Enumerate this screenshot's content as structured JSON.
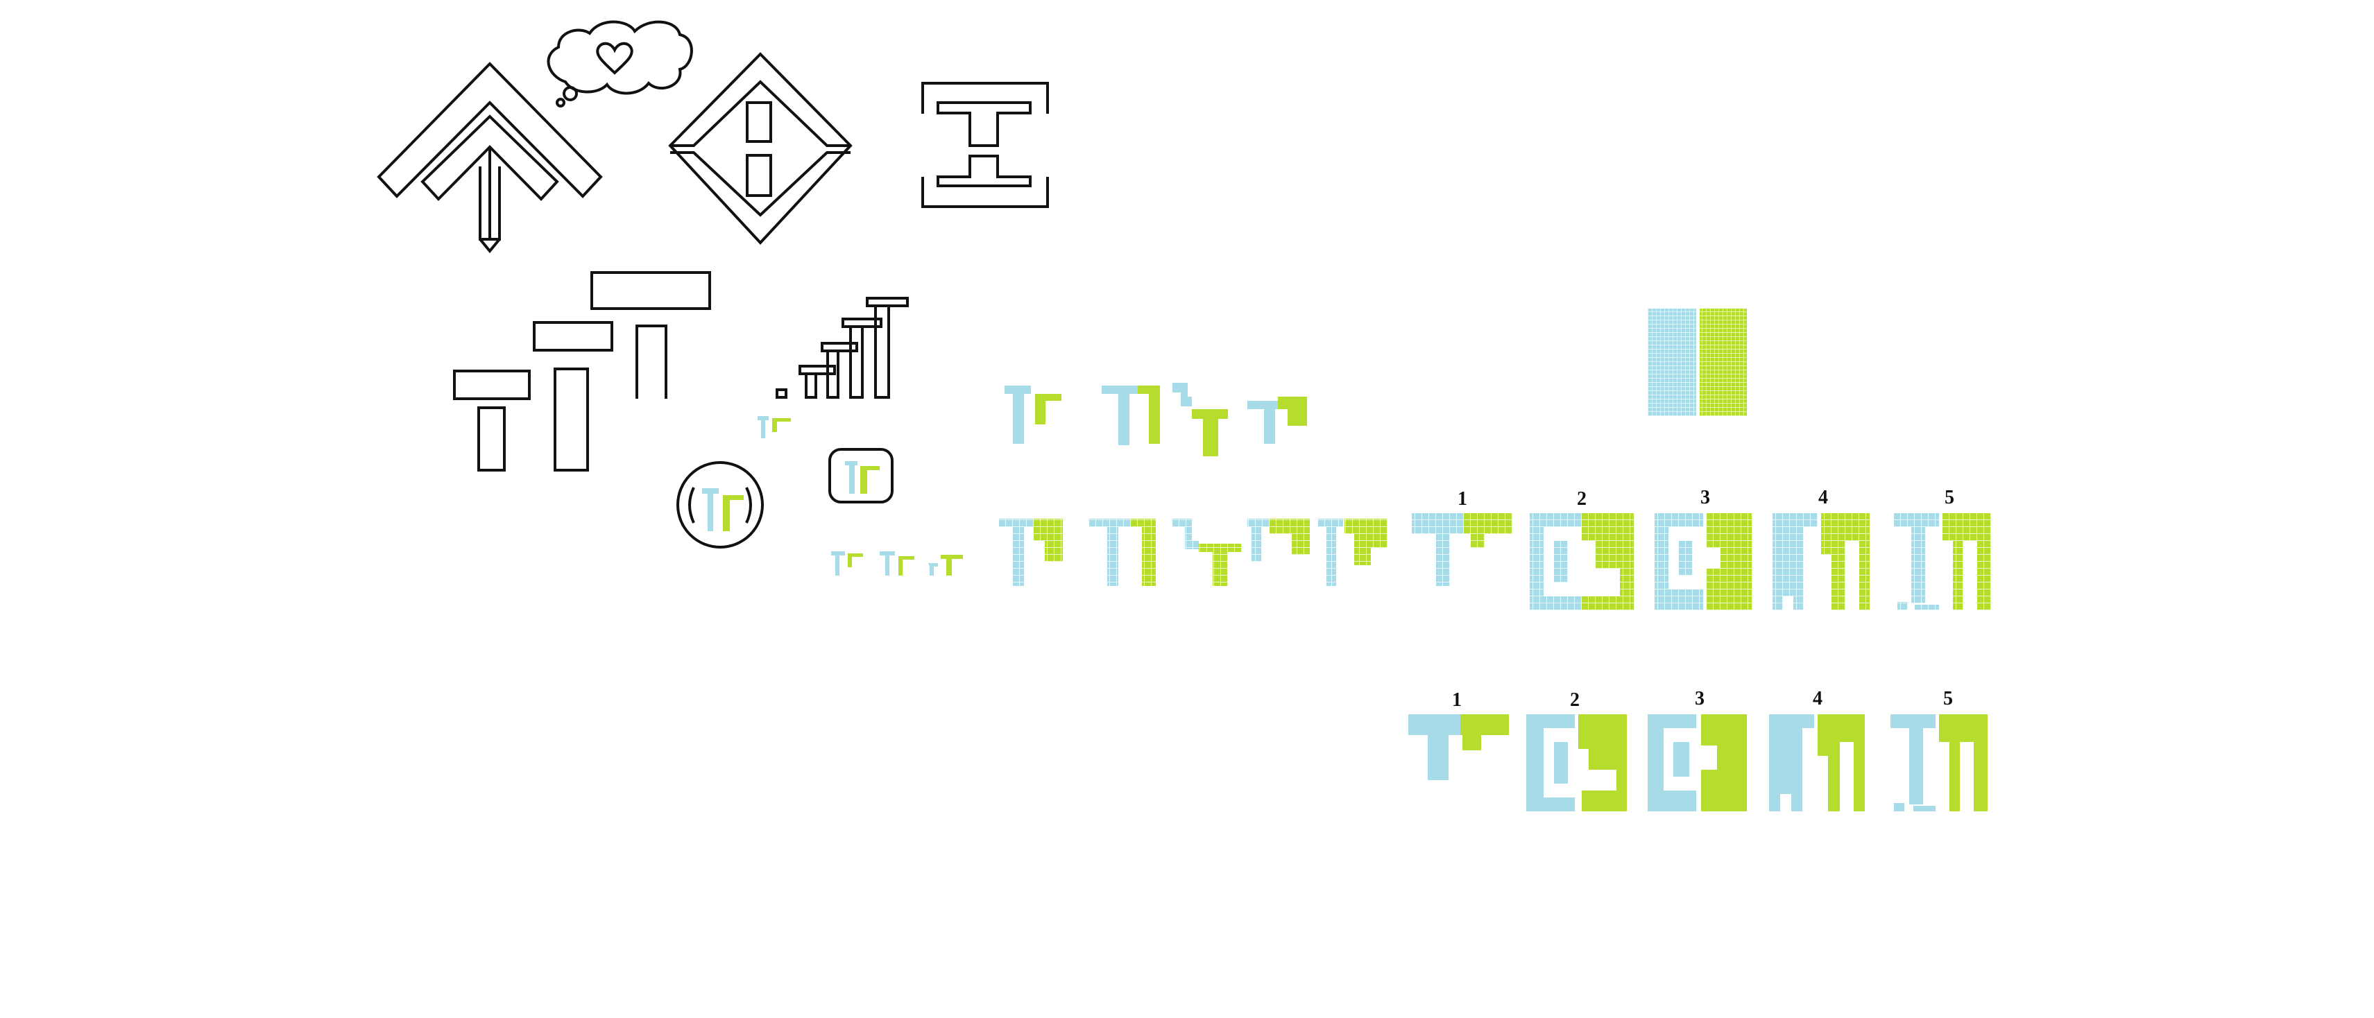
{
  "palette": {
    "blue": "#a7dbe8",
    "green": "#b6dc2e",
    "outline": "#111111",
    "grid_line": "#ffffff"
  },
  "icons": [
    "roof-arrow-icon",
    "thought-bubble-heart-icon",
    "diamond-emblem-icon",
    "bracket-emblem-icon",
    "table-pieces-icon",
    "staircase-icon",
    "circle-logo-icon",
    "rounded-logo-icon"
  ],
  "gridded_row_labels": [
    "1",
    "2",
    "3",
    "4",
    "5"
  ],
  "solid_row_labels": [
    "1",
    "2",
    "3",
    "4",
    "5"
  ]
}
